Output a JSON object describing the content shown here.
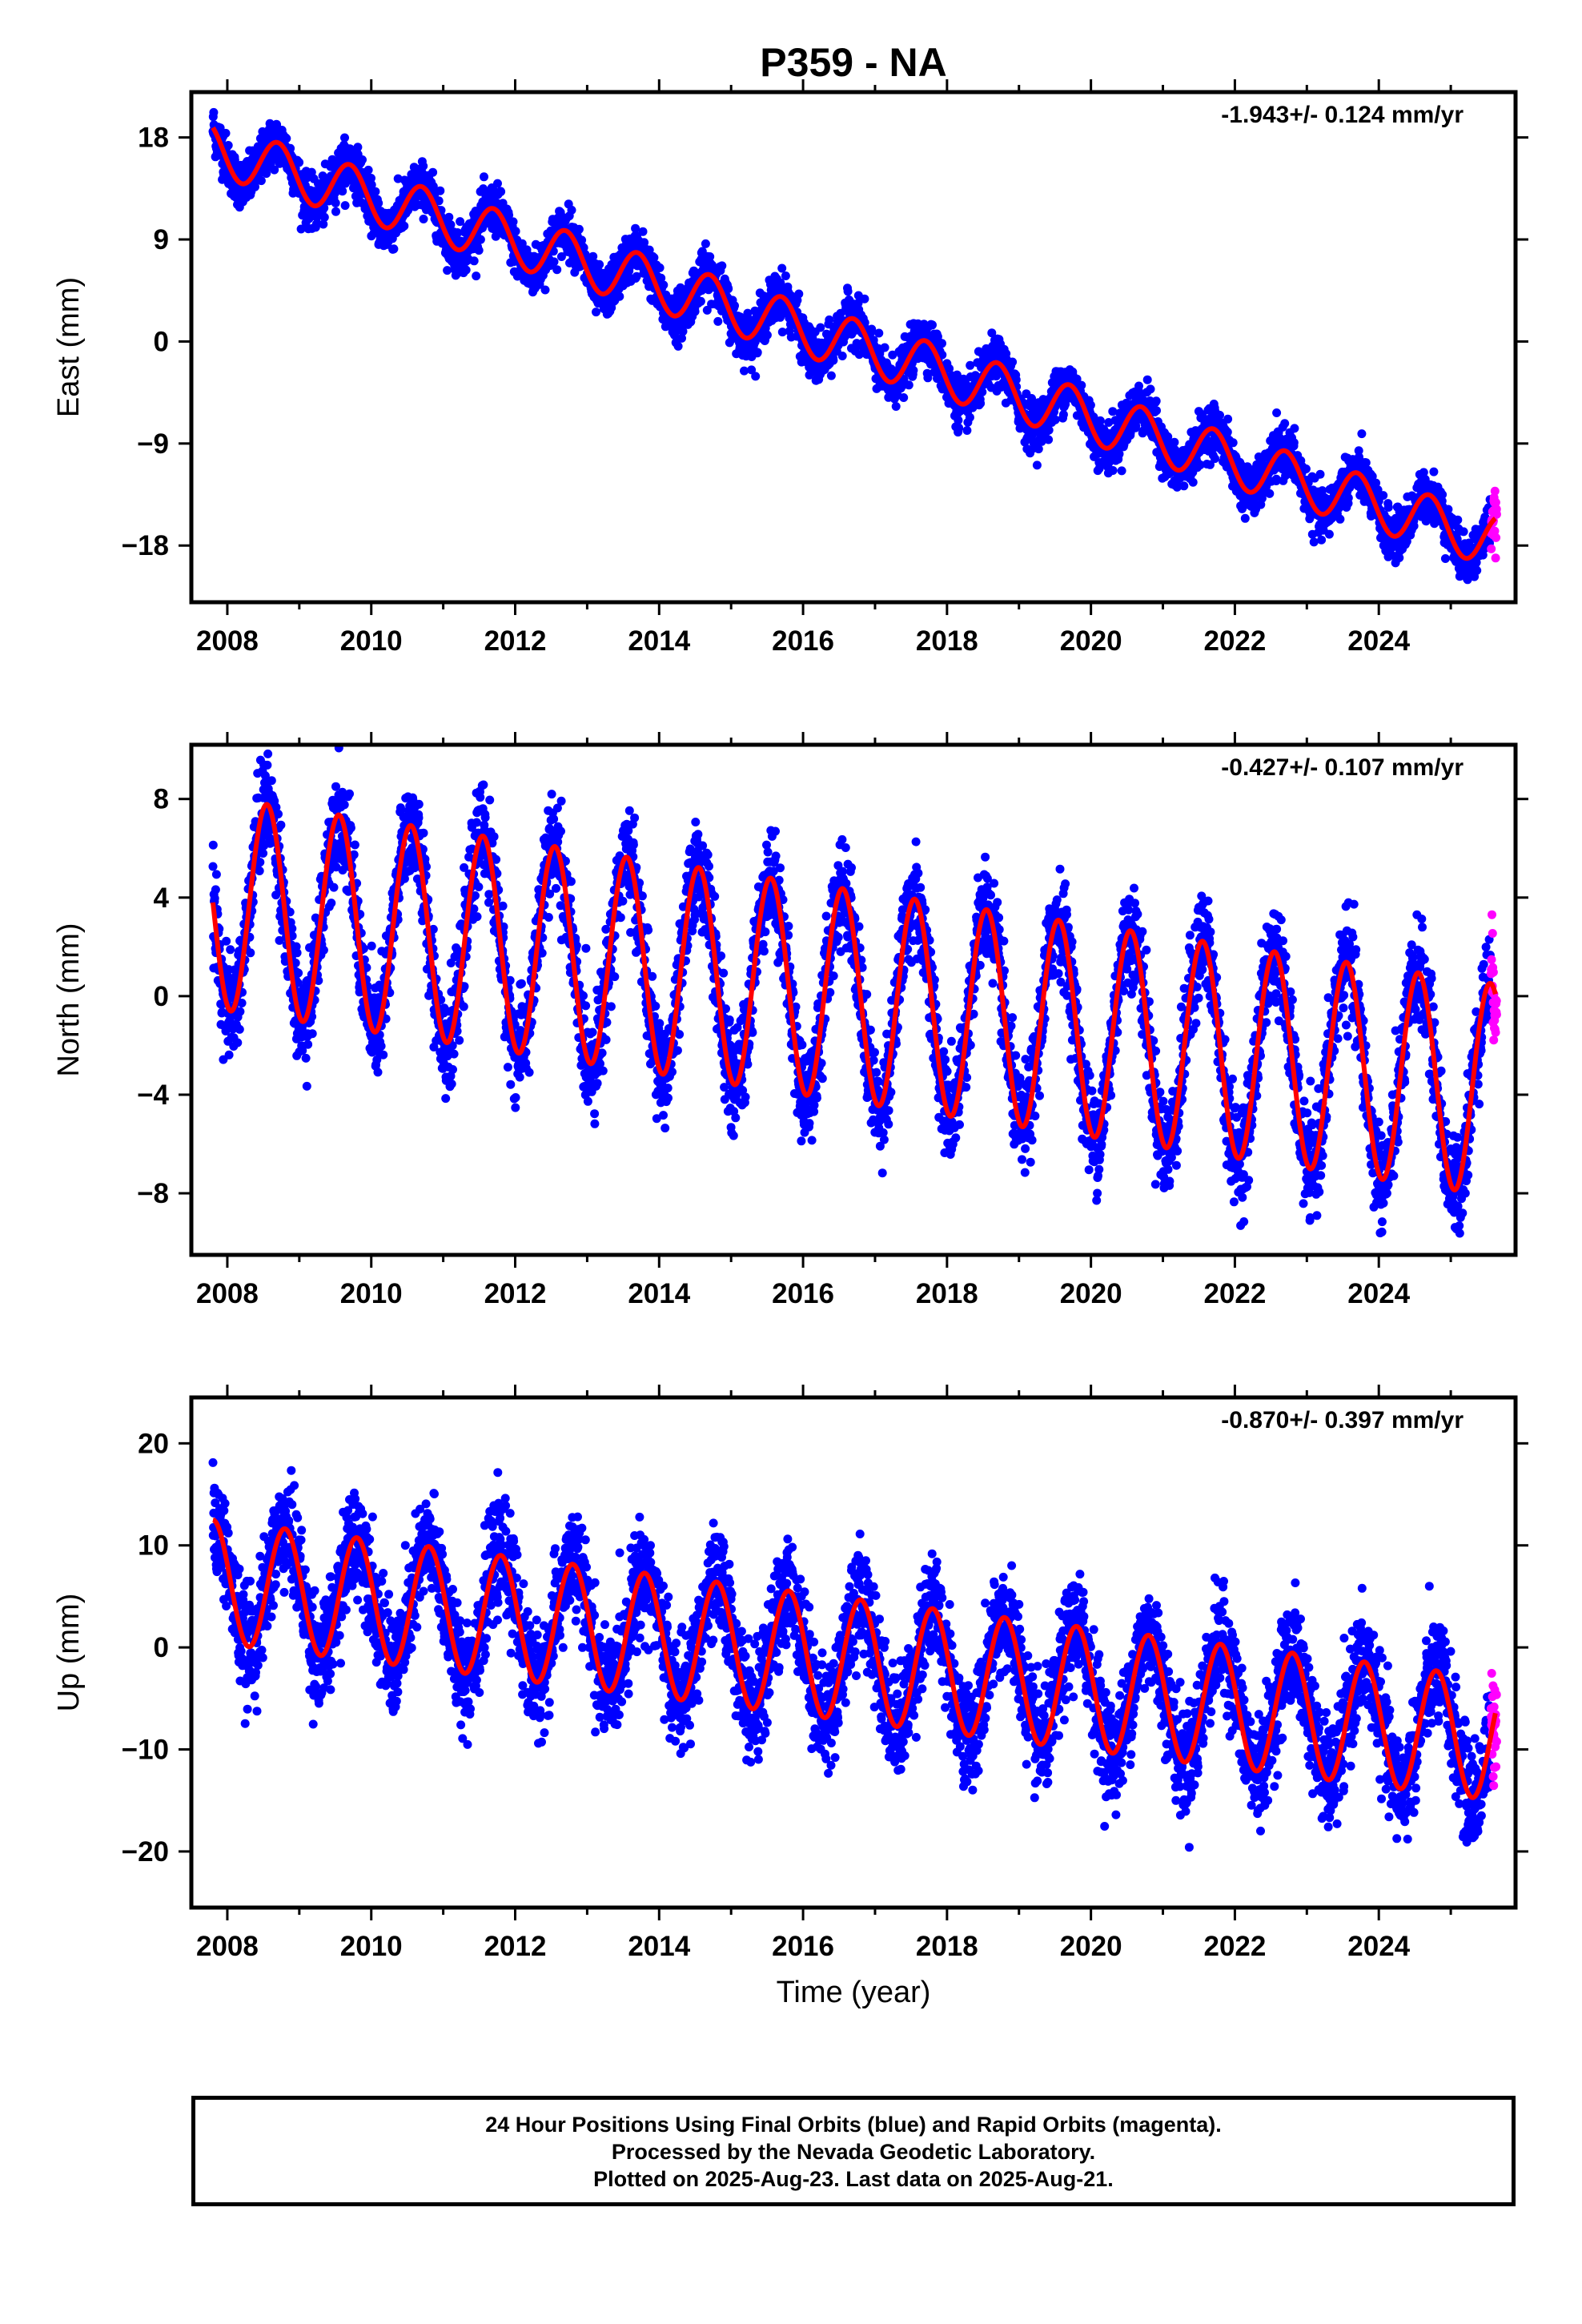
{
  "title": "P359 - NA",
  "chart_data": [
    {
      "type": "scatter",
      "id": "east",
      "ylabel": "East (mm)",
      "xlabel": "",
      "rate_label": "-1.943+/- 0.124 mm/yr",
      "xlim": [
        2007.5,
        2025.9
      ],
      "ylim": [
        -23,
        22
      ],
      "xticks": [
        2008,
        2010,
        2012,
        2014,
        2016,
        2018,
        2020,
        2022,
        2024
      ],
      "yticks": [
        18,
        9,
        0,
        -9,
        -18
      ],
      "model": {
        "t0": 2007.8,
        "v0": 17.0,
        "rate": -1.943,
        "annual_amp": 2.3,
        "annual_phase_peak": 0.7
      },
      "series": [
        {
          "name": "Final Orbits",
          "color": "#0000ff",
          "description": "24 hour positions (final orbits)"
        },
        {
          "name": "Rapid Orbits",
          "color": "#ff00ff",
          "description": "24 hour positions (rapid orbits)"
        },
        {
          "name": "Model fit",
          "color": "#ff0000"
        }
      ],
      "key_points": [
        {
          "x": 2007.8,
          "y": 18.5
        },
        {
          "x": 2008.7,
          "y": 17.5
        },
        {
          "x": 2010.0,
          "y": 14.5
        },
        {
          "x": 2012.0,
          "y": 10.0
        },
        {
          "x": 2014.0,
          "y": 5.5
        },
        {
          "x": 2016.0,
          "y": 2.0
        },
        {
          "x": 2018.0,
          "y": -1.5
        },
        {
          "x": 2020.0,
          "y": -5.5
        },
        {
          "x": 2022.0,
          "y": -10.0
        },
        {
          "x": 2024.0,
          "y": -14.5
        },
        {
          "x": 2025.6,
          "y": -18.5
        }
      ]
    },
    {
      "type": "scatter",
      "id": "north",
      "ylabel": "North (mm)",
      "xlabel": "",
      "rate_label": "-0.427+/- 0.107 mm/yr",
      "xlim": [
        2007.5,
        2025.9
      ],
      "ylim": [
        -10.5,
        10.2
      ],
      "xticks": [
        2008,
        2010,
        2012,
        2014,
        2016,
        2018,
        2020,
        2022,
        2024
      ],
      "yticks": [
        8,
        4,
        0,
        -4,
        -8
      ],
      "model": {
        "t0": 2007.8,
        "v0": 3.8,
        "rate": -0.427,
        "annual_amp": 4.3,
        "annual_phase_peak": 0.55
      },
      "series": [
        {
          "name": "Final Orbits",
          "color": "#0000ff"
        },
        {
          "name": "Rapid Orbits",
          "color": "#ff00ff"
        },
        {
          "name": "Model fit",
          "color": "#ff0000"
        }
      ],
      "key_points": [
        {
          "x": 2008.5,
          "y": 8.0
        },
        {
          "x": 2009.0,
          "y": -0.2
        },
        {
          "x": 2010.5,
          "y": 7.0
        },
        {
          "x": 2012.0,
          "y": -1.5
        },
        {
          "x": 2014.5,
          "y": 5.5
        },
        {
          "x": 2016.0,
          "y": -3.0
        },
        {
          "x": 2018.5,
          "y": 3.8
        },
        {
          "x": 2020.0,
          "y": -4.8
        },
        {
          "x": 2022.5,
          "y": 2.0
        },
        {
          "x": 2024.0,
          "y": -6.5
        },
        {
          "x": 2024.9,
          "y": -7.0
        },
        {
          "x": 2025.5,
          "y": 0.8
        }
      ]
    },
    {
      "type": "scatter",
      "id": "up",
      "ylabel": "Up (mm)",
      "xlabel": "Time (year)",
      "rate_label": "-0.870+/- 0.397 mm/yr",
      "xlim": [
        2007.5,
        2025.9
      ],
      "ylim": [
        -25.5,
        24.5
      ],
      "xticks": [
        2008,
        2010,
        2012,
        2014,
        2016,
        2018,
        2020,
        2022,
        2024
      ],
      "yticks": [
        20,
        10,
        0,
        -10,
        -20
      ],
      "model": {
        "t0": 2007.8,
        "v0": 6.5,
        "rate": -0.87,
        "annual_amp": 6.0,
        "annual_phase_peak": 0.8
      },
      "series": [
        {
          "name": "Final Orbits",
          "color": "#0000ff"
        },
        {
          "name": "Rapid Orbits",
          "color": "#ff00ff"
        },
        {
          "name": "Model fit",
          "color": "#ff0000"
        }
      ],
      "key_points": [
        {
          "x": 2007.8,
          "y": 12.5
        },
        {
          "x": 2008.3,
          "y": 0.5
        },
        {
          "x": 2008.8,
          "y": 12.0
        },
        {
          "x": 2012.0,
          "y": 9.0
        },
        {
          "x": 2016.0,
          "y": 5.5
        },
        {
          "x": 2020.0,
          "y": 2.0
        },
        {
          "x": 2024.0,
          "y": -1.5
        },
        {
          "x": 2025.3,
          "y": -14.5
        },
        {
          "x": 2025.6,
          "y": -4.0
        }
      ]
    }
  ],
  "footer": {
    "line1": "24 Hour Positions Using Final Orbits (blue) and Rapid Orbits (magenta).",
    "line2": "Processed by the Nevada Geodetic Laboratory.",
    "line3": "Plotted on 2025-Aug-23. Last data on 2025-Aug-21."
  }
}
